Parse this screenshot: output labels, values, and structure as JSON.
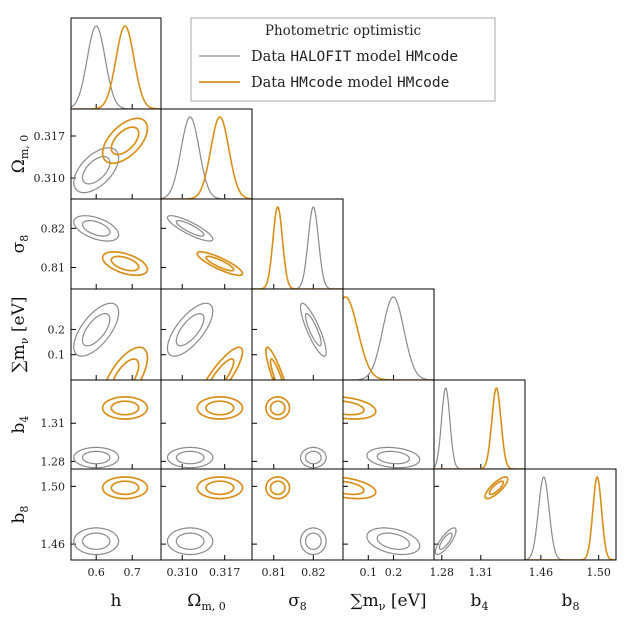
{
  "chart_data": {
    "type": "corner",
    "title": "Photometric optimistic",
    "colors": {
      "gray": "#8a8a8a",
      "orange": "#d9901a"
    },
    "parameters": [
      {
        "key": "h",
        "label_main": "h",
        "label_sub": "",
        "ticks": [
          0.6,
          0.7
        ],
        "tick_labels": [
          "0.6",
          "0.7"
        ],
        "range": [
          0.53,
          0.78
        ]
      },
      {
        "key": "om",
        "label_main": "Ω",
        "label_sub": "m, 0",
        "ticks": [
          0.31,
          0.317
        ],
        "tick_labels": [
          "0.310",
          "0.317"
        ],
        "range": [
          0.3065,
          0.3215
        ]
      },
      {
        "key": "s8",
        "label_main": "σ",
        "label_sub": "8",
        "ticks": [
          0.81,
          0.82
        ],
        "tick_labels": [
          "0.81",
          "0.82"
        ],
        "range": [
          0.8045,
          0.8275
        ]
      },
      {
        "key": "mnu",
        "label_main": "∑m",
        "label_sub": "ν",
        "label_suffix": " [eV]",
        "ticks": [
          0.1,
          0.2
        ],
        "tick_labels": [
          "0.1",
          "0.2"
        ],
        "range": [
          0.0,
          0.36
        ]
      },
      {
        "key": "b4",
        "label_main": "b",
        "label_sub": "4",
        "ticks": [
          1.28,
          1.31
        ],
        "tick_labels": [
          "1.28",
          "1.31"
        ],
        "range": [
          1.274,
          1.344
        ]
      },
      {
        "key": "b8",
        "label_main": "b",
        "label_sub": "8",
        "ticks": [
          1.46,
          1.5
        ],
        "tick_labels": [
          "1.46",
          "1.50"
        ],
        "range": [
          1.449,
          1.512
        ]
      }
    ],
    "series": [
      {
        "name": "Data HALOFIT model HMcode",
        "legend_parts": [
          "Data ",
          "HALOFIT",
          " model ",
          "HMcode"
        ],
        "color_key": "gray",
        "mean": [
          0.6,
          0.3113,
          0.82,
          0.199,
          1.283,
          1.462
        ],
        "sigma": [
          0.025,
          0.0015,
          0.0013,
          0.042,
          0.0032,
          0.0037
        ],
        "corr": [
          [
            1.0,
            0.55,
            -0.5,
            0.65,
            0.0,
            0.0
          ],
          [
            0.55,
            1.0,
            -0.85,
            0.7,
            0.0,
            0.0
          ],
          [
            -0.5,
            -0.85,
            1.0,
            -0.85,
            0.0,
            0.0
          ],
          [
            0.65,
            0.7,
            -0.85,
            1.0,
            -0.2,
            -0.35
          ],
          [
            0.0,
            0.0,
            0.0,
            -0.2,
            1.0,
            0.8
          ],
          [
            0.0,
            0.0,
            0.0,
            -0.35,
            0.8,
            1.0
          ]
        ]
      },
      {
        "name": "Data HMcode model HMcode",
        "legend_parts": [
          "Data ",
          "HMcode",
          " model ",
          "HMcode"
        ],
        "color_key": "orange",
        "mean": [
          0.68,
          0.3162,
          0.811,
          0.01,
          1.322,
          1.499
        ],
        "sigma": [
          0.025,
          0.0015,
          0.0012,
          0.048,
          0.0035,
          0.003
        ],
        "corr": [
          [
            1.0,
            0.55,
            -0.5,
            0.65,
            0.0,
            0.0
          ],
          [
            0.55,
            1.0,
            -0.85,
            0.85,
            0.0,
            0.0
          ],
          [
            -0.5,
            -0.85,
            1.0,
            -0.88,
            0.0,
            0.0
          ],
          [
            0.65,
            0.85,
            -0.88,
            1.0,
            -0.3,
            -0.4
          ],
          [
            0.0,
            0.0,
            0.0,
            -0.3,
            1.0,
            0.8
          ],
          [
            0.0,
            0.0,
            0.0,
            -0.4,
            0.8,
            1.0
          ]
        ]
      }
    ],
    "truncated_at_zero": [
      "mnu"
    ],
    "contour_levels": [
      "68%",
      "95%"
    ]
  }
}
